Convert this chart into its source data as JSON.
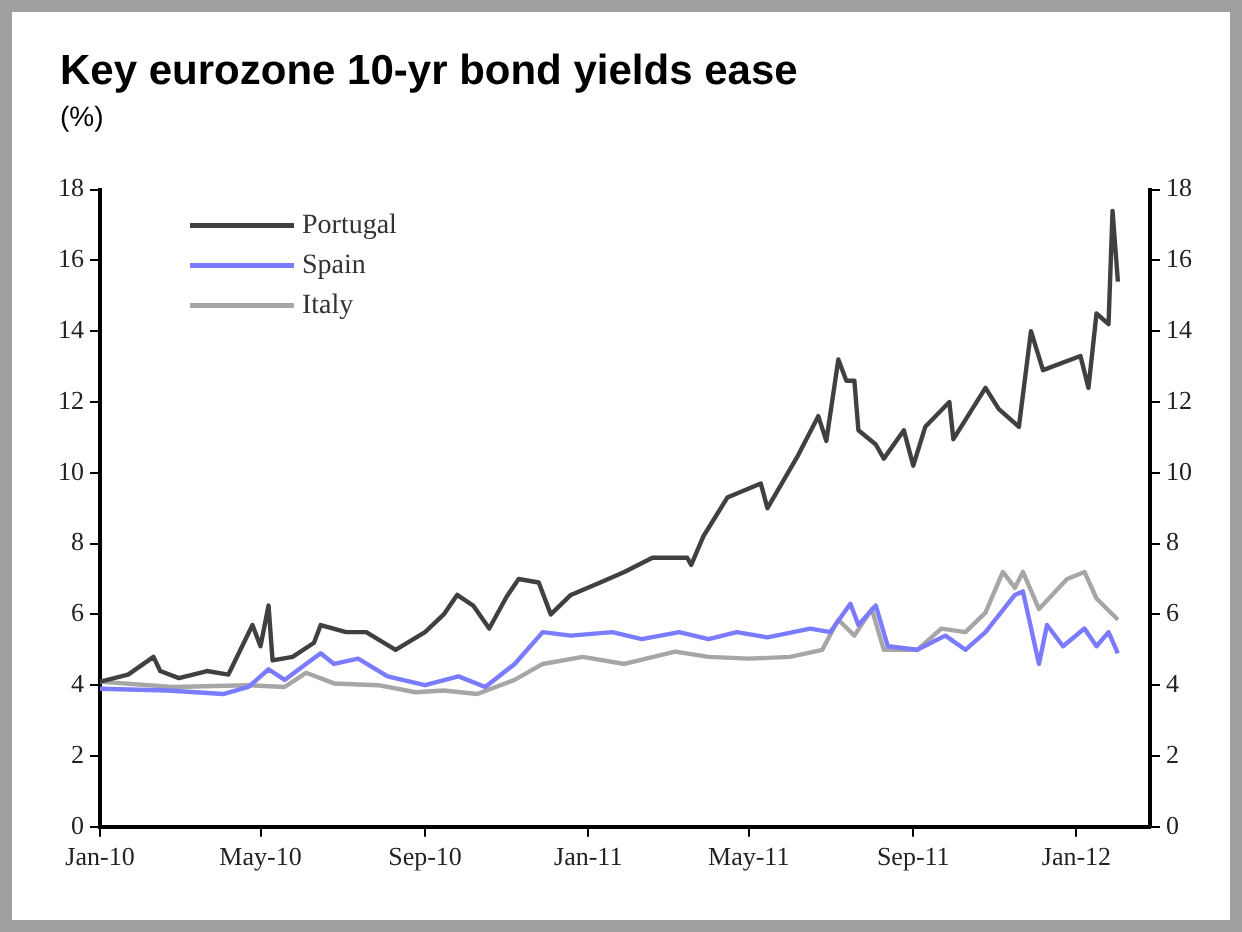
{
  "chart_data": {
    "type": "line",
    "title": "Key eurozone 10-yr bond yields ease",
    "ylabel": "(%)",
    "xlim": [
      "2010-01-01",
      "2012-02-25"
    ],
    "xticks": [
      {
        "value": "2010-01",
        "label": "Jan-10"
      },
      {
        "value": "2010-05",
        "label": "May-10"
      },
      {
        "value": "2010-09",
        "label": "Sep-10"
      },
      {
        "value": "2011-01",
        "label": "Jan-11"
      },
      {
        "value": "2011-05",
        "label": "May-11"
      },
      {
        "value": "2011-09",
        "label": "Sep-11"
      },
      {
        "value": "2012-01",
        "label": "Jan-12"
      }
    ],
    "ylim": [
      0,
      18
    ],
    "yticks": [
      0,
      2,
      4,
      6,
      8,
      10,
      12,
      14,
      16,
      18
    ],
    "y2lim": [
      0,
      18
    ],
    "y2ticks": [
      0,
      2,
      4,
      6,
      8,
      10,
      12,
      14,
      16,
      18
    ],
    "grid": false,
    "legend": "top left",
    "marker": "none",
    "line_style": "solid",
    "series": [
      {
        "name": "Portugal",
        "color": "#404040",
        "x": [
          "2010-01-01",
          "2010-01-22",
          "2010-02-10",
          "2010-02-15",
          "2010-03-01",
          "2010-03-22",
          "2010-04-07",
          "2010-04-25",
          "2010-05-01",
          "2010-05-07",
          "2010-05-10",
          "2010-05-25",
          "2010-06-10",
          "2010-06-15",
          "2010-07-04",
          "2010-07-19",
          "2010-08-10",
          "2010-09-01",
          "2010-09-15",
          "2010-09-25",
          "2010-10-07",
          "2010-10-19",
          "2010-11-01",
          "2010-11-10",
          "2010-11-25",
          "2010-12-04",
          "2010-12-19",
          "2011-01-10",
          "2011-01-28",
          "2011-02-18",
          "2011-03-16",
          "2011-03-19",
          "2011-03-28",
          "2011-04-15",
          "2011-05-10",
          "2011-05-15",
          "2011-06-07",
          "2011-06-22",
          "2011-06-28",
          "2011-07-07",
          "2011-07-13",
          "2011-07-19",
          "2011-07-22",
          "2011-08-04",
          "2011-08-10",
          "2011-08-25",
          "2011-09-01",
          "2011-09-10",
          "2011-09-28",
          "2011-10-01",
          "2011-10-25",
          "2011-11-04",
          "2011-11-19",
          "2011-11-28",
          "2011-12-07",
          "2012-01-04",
          "2012-01-10",
          "2012-01-16",
          "2012-01-25",
          "2012-01-28",
          "2012-02-01"
        ],
        "values": [
          4.1,
          4.3,
          4.8,
          4.4,
          4.2,
          4.4,
          4.3,
          5.7,
          5.1,
          6.25,
          4.7,
          4.8,
          5.2,
          5.7,
          5.5,
          5.5,
          5.0,
          5.5,
          6.0,
          6.55,
          6.25,
          5.6,
          6.5,
          7.0,
          6.9,
          6.0,
          6.55,
          6.9,
          7.2,
          7.6,
          7.6,
          7.4,
          8.2,
          9.3,
          9.7,
          9.0,
          10.5,
          11.6,
          10.9,
          13.2,
          12.6,
          12.6,
          11.2,
          10.8,
          10.4,
          11.2,
          10.2,
          11.3,
          12.0,
          10.95,
          12.4,
          11.8,
          11.3,
          14.0,
          12.9,
          13.3,
          12.4,
          14.5,
          14.2,
          17.4,
          15.4
        ]
      },
      {
        "name": "Spain",
        "color": "#7b7bff",
        "x": [
          "2010-01-01",
          "2010-02-21",
          "2010-04-03",
          "2010-04-22",
          "2010-05-07",
          "2010-05-19",
          "2010-06-04",
          "2010-06-15",
          "2010-06-25",
          "2010-07-13",
          "2010-08-04",
          "2010-09-01",
          "2010-09-26",
          "2010-10-16",
          "2010-11-07",
          "2010-11-28",
          "2010-12-19",
          "2011-01-19",
          "2011-02-10",
          "2011-03-10",
          "2011-04-01",
          "2011-04-22",
          "2011-05-15",
          "2011-06-16",
          "2011-07-01",
          "2011-07-16",
          "2011-07-22",
          "2011-08-04",
          "2011-08-13",
          "2011-09-04",
          "2011-09-25",
          "2011-10-10",
          "2011-10-25",
          "2011-11-16",
          "2011-11-22",
          "2011-12-04",
          "2011-12-10",
          "2011-12-22",
          "2012-01-07",
          "2012-01-16",
          "2012-01-25",
          "2012-02-01"
        ],
        "values": [
          3.9,
          3.85,
          3.75,
          3.95,
          4.45,
          4.15,
          4.6,
          4.9,
          4.6,
          4.75,
          4.25,
          4.0,
          4.25,
          3.95,
          4.6,
          5.5,
          5.4,
          5.5,
          5.3,
          5.5,
          5.3,
          5.5,
          5.35,
          5.6,
          5.5,
          6.3,
          5.7,
          6.25,
          5.1,
          5.0,
          5.4,
          5.0,
          5.5,
          6.55,
          6.65,
          4.6,
          5.7,
          5.1,
          5.6,
          5.1,
          5.5,
          4.9
        ]
      },
      {
        "name": "Italy",
        "color": "#a6a6a6",
        "x": [
          "2010-01-01",
          "2010-02-24",
          "2010-04-22",
          "2010-05-19",
          "2010-06-04",
          "2010-06-25",
          "2010-07-28",
          "2010-08-25",
          "2010-09-15",
          "2010-10-10",
          "2010-11-07",
          "2010-11-28",
          "2010-12-28",
          "2011-01-28",
          "2011-03-07",
          "2011-04-01",
          "2011-05-01",
          "2011-06-01",
          "2011-06-25",
          "2011-07-07",
          "2011-07-19",
          "2011-08-01",
          "2011-08-10",
          "2011-09-04",
          "2011-09-22",
          "2011-10-10",
          "2011-10-25",
          "2011-11-07",
          "2011-11-16",
          "2011-11-22",
          "2011-12-04",
          "2011-12-25",
          "2012-01-07",
          "2012-01-16",
          "2012-02-01"
        ],
        "values": [
          4.1,
          3.95,
          4.0,
          3.95,
          4.35,
          4.05,
          4.0,
          3.8,
          3.85,
          3.75,
          4.15,
          4.6,
          4.8,
          4.6,
          4.95,
          4.8,
          4.75,
          4.8,
          5.0,
          5.85,
          5.4,
          6.15,
          5.0,
          5.0,
          5.6,
          5.5,
          6.05,
          7.2,
          6.75,
          7.2,
          6.15,
          7.0,
          7.2,
          6.45,
          5.85
        ]
      }
    ]
  }
}
